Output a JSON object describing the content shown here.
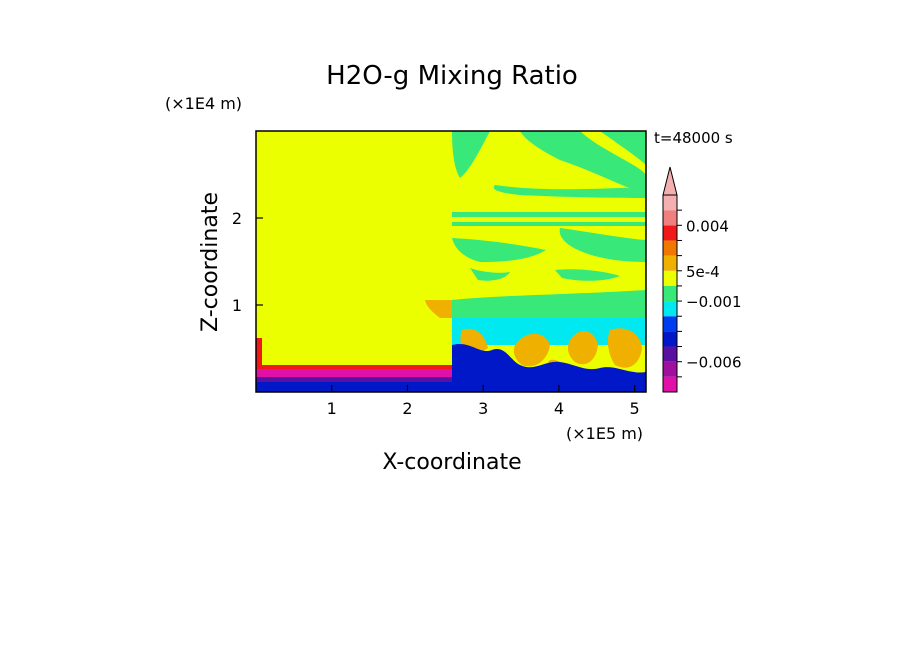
{
  "chart_data": {
    "type": "heatmap",
    "title": "H2O-g Mixing Ratio",
    "xlabel": "X-coordinate",
    "ylabel": "Z-coordinate",
    "x_unit": "(×1E5 m)",
    "y_unit": "(×1E4 m)",
    "time_label": "t=48000 s",
    "xlim": [
      0,
      5.15
    ],
    "ylim": [
      0,
      3.0
    ],
    "x_ticks": [
      1,
      2,
      3,
      4,
      5
    ],
    "y_ticks": [
      1,
      2
    ],
    "colorbar": {
      "levels": [
        -0.009,
        -0.0075,
        -0.006,
        -0.0045,
        -0.003,
        -0.002,
        -0.001,
        0,
        0.0005,
        0.001,
        0.0025,
        0.004,
        0.0055
      ],
      "colors": [
        "#e010a8",
        "#a0109f",
        "#5a10a0",
        "#0018c8",
        "#003cf0",
        "#00e8f0",
        "#38e878",
        "#ecff00",
        "#f0b000",
        "#f07800",
        "#f01818",
        "#f08080",
        "#f4b0b0"
      ],
      "tick_labels": [
        {
          "value": 0.004,
          "label": "0.004"
        },
        {
          "value": 0.0005,
          "label": "5e-4"
        },
        {
          "value": -0.001,
          "label": "−0.001"
        },
        {
          "value": -0.006,
          "label": "−0.006"
        }
      ],
      "extend": "max"
    },
    "regions": {
      "background": "#ecff00",
      "green_band": "#38e878",
      "cyan": "#00e8f0",
      "orange": "#f0b000",
      "blue": "#0018c8",
      "magenta": "#e010a8",
      "purple": "#5a10a0",
      "red": "#f01818"
    }
  }
}
